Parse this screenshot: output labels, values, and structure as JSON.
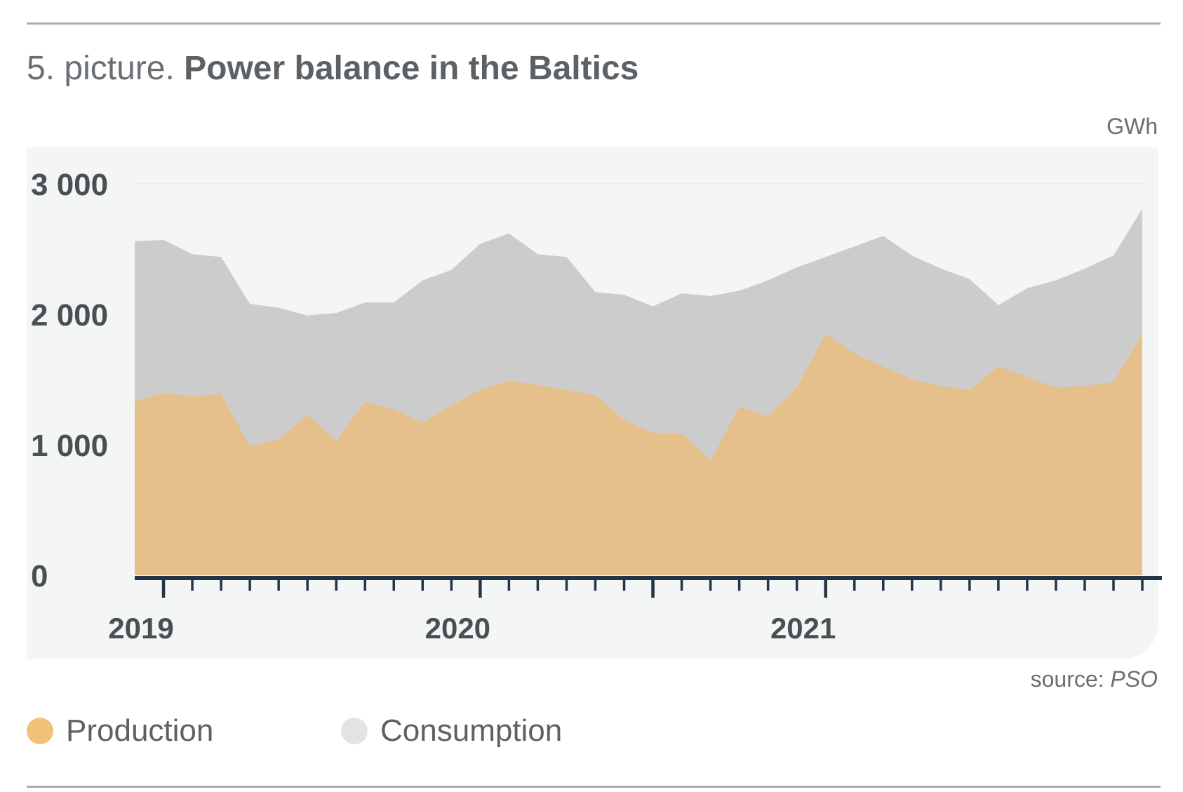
{
  "title": {
    "lead": "5. picture.",
    "main": "Power balance in the Baltics"
  },
  "unit": "GWh",
  "source": {
    "label": "source:",
    "name": "PSO"
  },
  "colors": {
    "production": "#e6c08a",
    "consumption": "#cccccc",
    "legend_production": "#f2c17a",
    "legend_consumption": "#e3e3e5",
    "plot_background": "#f4f6f5",
    "axis": "#243447"
  },
  "chart_data": {
    "type": "area",
    "x": [
      "2019-01",
      "2019-02",
      "2019-03",
      "2019-04",
      "2019-05",
      "2019-06",
      "2019-07",
      "2019-08",
      "2019-09",
      "2019-10",
      "2019-11",
      "2019-12",
      "2020-01",
      "2020-02",
      "2020-03",
      "2020-04",
      "2020-05",
      "2020-06",
      "2020-07",
      "2020-08",
      "2020-09",
      "2020-10",
      "2020-11",
      "2020-12",
      "2021-01",
      "2021-02",
      "2021-03",
      "2021-04",
      "2021-05",
      "2021-06",
      "2021-07",
      "2021-08",
      "2021-09",
      "2021-10",
      "2021-11",
      "2021-12"
    ],
    "series": [
      {
        "name": "Consumption",
        "values": [
          2560,
          2570,
          2460,
          2440,
          2080,
          2050,
          1990,
          2010,
          2090,
          2090,
          2260,
          2340,
          2540,
          2620,
          2460,
          2440,
          2170,
          2150,
          2060,
          2160,
          2140,
          2180,
          2260,
          2360,
          2440,
          2520,
          2600,
          2450,
          2350,
          2270,
          2070,
          2200,
          2260,
          2350,
          2450,
          2810
        ]
      },
      {
        "name": "Production",
        "values": [
          1330,
          1400,
          1370,
          1390,
          990,
          1040,
          1230,
          1030,
          1330,
          1270,
          1170,
          1300,
          1420,
          1490,
          1460,
          1420,
          1380,
          1190,
          1090,
          1090,
          880,
          1290,
          1220,
          1440,
          1850,
          1700,
          1600,
          1500,
          1450,
          1420,
          1600,
          1520,
          1440,
          1450,
          1480,
          1850
        ]
      }
    ],
    "xlabel": "",
    "ylabel": "",
    "ylim": [
      0,
      3000
    ],
    "y_ticks": [
      {
        "value": 0,
        "label": "0"
      },
      {
        "value": 1000,
        "label": "1 000"
      },
      {
        "value": 2000,
        "label": "2 000"
      },
      {
        "value": 3000,
        "label": "3 000"
      }
    ],
    "x_year_labels": [
      {
        "x": "2019-02",
        "label": "2019"
      },
      {
        "x": "2020-01",
        "label": "2020"
      },
      {
        "x": "2021-01",
        "label": "2021"
      }
    ],
    "grid": true,
    "legend_position": "bottom-left"
  },
  "legend": [
    {
      "name": "Production"
    },
    {
      "name": "Consumption"
    }
  ]
}
